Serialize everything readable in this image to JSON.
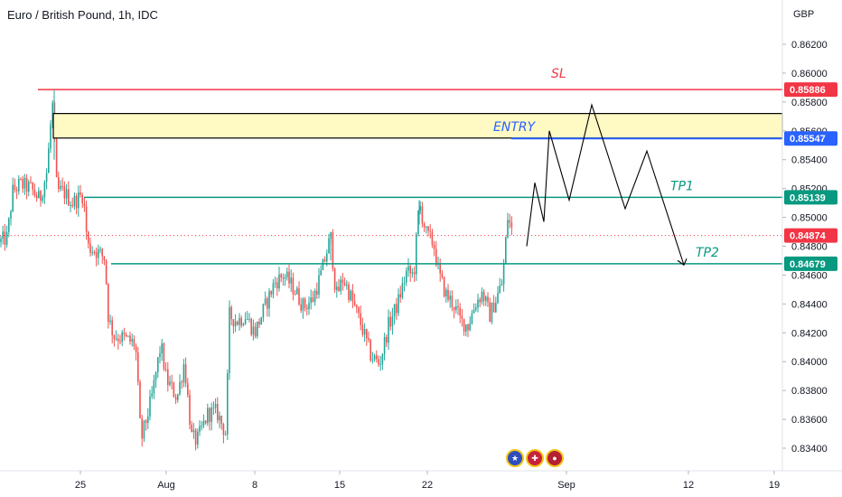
{
  "header": {
    "title": "Euro / British Pound, 1h, IDC"
  },
  "price_axis": {
    "currency": "GBP",
    "ticks": [
      "0.86200",
      "0.86000",
      "0.85800",
      "0.85600",
      "0.85400",
      "0.85200",
      "0.85000",
      "0.84800",
      "0.84600",
      "0.84400",
      "0.84200",
      "0.84000",
      "0.83800",
      "0.83600",
      "0.83400"
    ]
  },
  "time_axis": {
    "ticks": [
      "25",
      "Aug",
      "8",
      "15",
      "22",
      "Sep",
      "12",
      "19"
    ]
  },
  "levels": {
    "sl": {
      "label": "SL",
      "price": "0.85886",
      "color": "#f23645"
    },
    "entry": {
      "label": "ENTRY",
      "price": "0.85547",
      "color": "#2962ff"
    },
    "tp1": {
      "label": "TP1",
      "price": "0.85139",
      "color": "#089981"
    },
    "tp2": {
      "label": "TP2",
      "price": "0.84679",
      "color": "#089981"
    },
    "last": {
      "price": "0.84874",
      "color": "#f23645"
    }
  },
  "entry_zone": {
    "top": 0.8572,
    "bottom": 0.8555
  },
  "projection_path": [
    0.848,
    0.8524,
    0.8497,
    0.856,
    0.8512,
    0.8578,
    0.8506,
    0.8546,
    0.8467
  ],
  "colors": {
    "up": "#26a69a",
    "down": "#ef5350",
    "zone_fill": "#fff9c4"
  },
  "event_icons": [
    "eu-flag-icon",
    "uk-flag-icon",
    "us-flag-icon"
  ]
}
